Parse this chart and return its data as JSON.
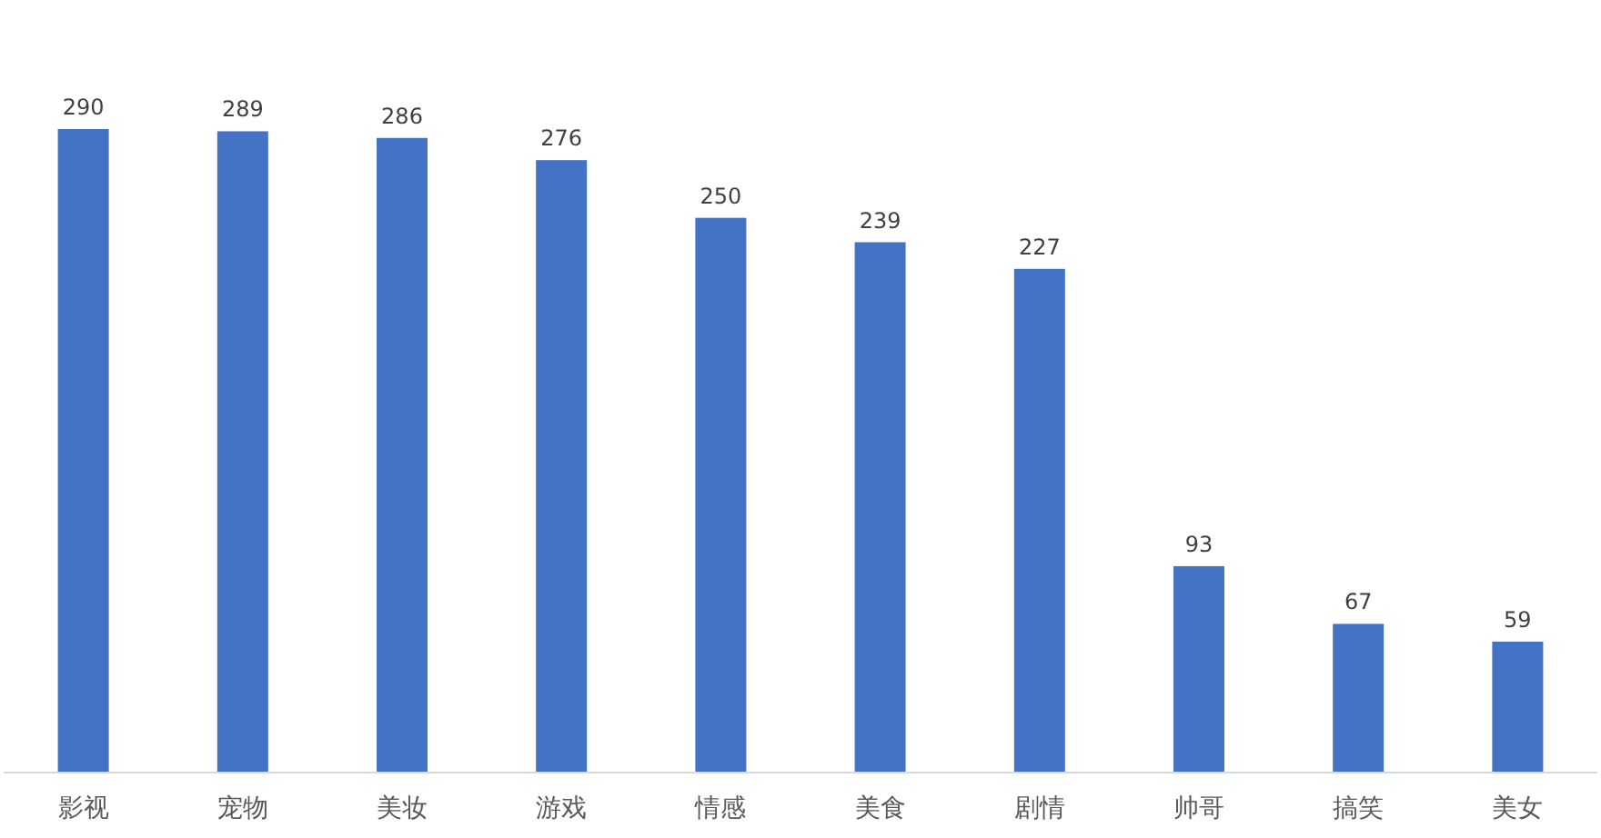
{
  "chart_data": {
    "type": "bar",
    "categories": [
      "影视",
      "宠物",
      "美妆",
      "游戏",
      "情感",
      "美食",
      "剧情",
      "帅哥",
      "搞笑",
      "美女"
    ],
    "values": [
      290,
      289,
      286,
      276,
      250,
      239,
      227,
      93,
      67,
      59
    ],
    "color": "#4472c4",
    "data_labels": true
  }
}
